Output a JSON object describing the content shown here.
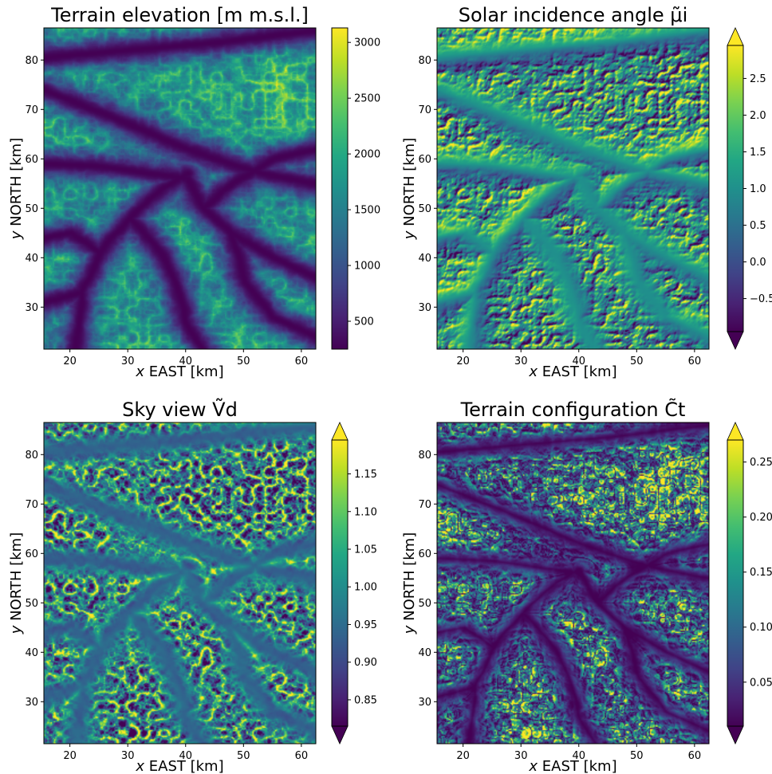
{
  "chart_data": [
    {
      "type": "heatmap",
      "field": "elevation",
      "title": "Terrain elevation [m m.s.l.]",
      "xlabel": "x EAST [km]",
      "ylabel": "y NORTH [km]",
      "xlim": [
        15.5,
        62.5
      ],
      "ylim": [
        21.5,
        86.5
      ],
      "xticks": [
        20,
        30,
        40,
        50,
        60
      ],
      "yticks": [
        30,
        40,
        50,
        60,
        70,
        80
      ],
      "colormap": "viridis",
      "colorbar": {
        "range": [
          250,
          3130
        ],
        "extend": "neither",
        "ticks": [
          500,
          1000,
          1500,
          2000,
          2500,
          3000
        ],
        "tick_labels": [
          "500",
          "1000",
          "1500",
          "2000",
          "2500",
          "3000"
        ]
      }
    },
    {
      "type": "heatmap",
      "field": "hillshade",
      "title": "Solar incidence angle μ̃i",
      "xlabel": "x EAST [km]",
      "ylabel": "y NORTH [km]",
      "xlim": [
        15.5,
        62.5
      ],
      "ylim": [
        21.5,
        86.5
      ],
      "xticks": [
        20,
        30,
        40,
        50,
        60
      ],
      "yticks": [
        30,
        40,
        50,
        60,
        70,
        80
      ],
      "colormap": "viridis",
      "colorbar": {
        "range": [
          -0.95,
          2.95
        ],
        "extend": "both",
        "ticks": [
          -0.5,
          0.0,
          0.5,
          1.0,
          1.5,
          2.0,
          2.5
        ],
        "tick_labels": [
          "−0.5",
          "0.0",
          "0.5",
          "1.0",
          "1.5",
          "2.0",
          "2.5"
        ]
      }
    },
    {
      "type": "heatmap",
      "field": "skyview",
      "title": "Sky view Ṽd",
      "xlabel": "x EAST [km]",
      "ylabel": "y NORTH [km]",
      "xlim": [
        15.5,
        62.5
      ],
      "ylim": [
        21.5,
        86.5
      ],
      "xticks": [
        20,
        30,
        40,
        50,
        60
      ],
      "yticks": [
        30,
        40,
        50,
        60,
        70,
        80
      ],
      "colormap": "viridis",
      "colorbar": {
        "range": [
          0.815,
          1.195
        ],
        "extend": "both",
        "ticks": [
          0.85,
          0.9,
          0.95,
          1.0,
          1.05,
          1.1,
          1.15
        ],
        "tick_labels": [
          "0.85",
          "0.90",
          "0.95",
          "1.00",
          "1.05",
          "1.10",
          "1.15"
        ]
      }
    },
    {
      "type": "heatmap",
      "field": "terrainconfig",
      "title": "Terrain configuration C̃t",
      "xlabel": "x EAST [km]",
      "ylabel": "y NORTH [km]",
      "xlim": [
        15.5,
        62.5
      ],
      "ylim": [
        21.5,
        86.5
      ],
      "xticks": [
        20,
        30,
        40,
        50,
        60
      ],
      "yticks": [
        30,
        40,
        50,
        60,
        70,
        80
      ],
      "colormap": "viridis",
      "colorbar": {
        "range": [
          0.01,
          0.27
        ],
        "extend": "both",
        "ticks": [
          0.05,
          0.1,
          0.15,
          0.2,
          0.25
        ],
        "tick_labels": [
          "0.05",
          "0.10",
          "0.15",
          "0.20",
          "0.25"
        ]
      }
    }
  ]
}
